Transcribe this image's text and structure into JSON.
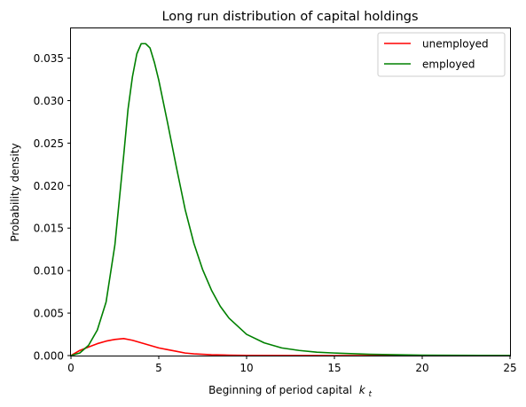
{
  "chart_data": {
    "type": "line",
    "title": "Long run distribution of capital holdings",
    "xlabel": "Beginning of period capital",
    "xlabel_math": "k",
    "xlabel_math_sub": "t",
    "ylabel": "Probability density",
    "xlim": [
      0,
      25
    ],
    "ylim": [
      0,
      0.0385
    ],
    "xticks": [
      0,
      5,
      10,
      15,
      20,
      25
    ],
    "xtick_labels": [
      "0",
      "5",
      "10",
      "15",
      "20",
      "25"
    ],
    "yticks": [
      0,
      0.005,
      0.01,
      0.015,
      0.02,
      0.025,
      0.03,
      0.035
    ],
    "ytick_labels": [
      "0.000",
      "0.005",
      "0.010",
      "0.015",
      "0.020",
      "0.025",
      "0.030",
      "0.035"
    ],
    "grid": false,
    "legend": "top-right",
    "series": [
      {
        "name": "unemployed",
        "color": "#ff0000",
        "x": [
          0,
          0.5,
          1,
          1.5,
          2,
          2.5,
          3,
          3.5,
          4,
          4.5,
          5,
          5.5,
          6,
          6.5,
          7,
          8,
          9,
          10,
          12,
          15,
          20,
          25
        ],
        "y": [
          0,
          0.0006,
          0.001,
          0.0014,
          0.0017,
          0.0019,
          0.002,
          0.0018,
          0.0015,
          0.0012,
          0.0009,
          0.0007,
          0.0005,
          0.0003,
          0.0002,
          0.0001,
          5e-05,
          2e-05,
          1e-05,
          0,
          0,
          0
        ]
      },
      {
        "name": "employed",
        "color": "#008000",
        "x": [
          0,
          0.5,
          1,
          1.5,
          2,
          2.5,
          3,
          3.25,
          3.5,
          3.75,
          4,
          4.25,
          4.5,
          4.75,
          5,
          5.5,
          6,
          6.5,
          7,
          7.5,
          8,
          8.5,
          9,
          10,
          11,
          12,
          13,
          14,
          15,
          17,
          20,
          25
        ],
        "y": [
          0,
          0.0003,
          0.0012,
          0.003,
          0.0063,
          0.013,
          0.0235,
          0.029,
          0.0328,
          0.0355,
          0.0367,
          0.0367,
          0.0362,
          0.0345,
          0.0324,
          0.0274,
          0.0222,
          0.0172,
          0.0132,
          0.0101,
          0.0077,
          0.0058,
          0.0044,
          0.0025,
          0.0015,
          0.0009,
          0.0006,
          0.0004,
          0.0003,
          0.00015,
          5e-05,
          1e-05
        ]
      }
    ]
  }
}
